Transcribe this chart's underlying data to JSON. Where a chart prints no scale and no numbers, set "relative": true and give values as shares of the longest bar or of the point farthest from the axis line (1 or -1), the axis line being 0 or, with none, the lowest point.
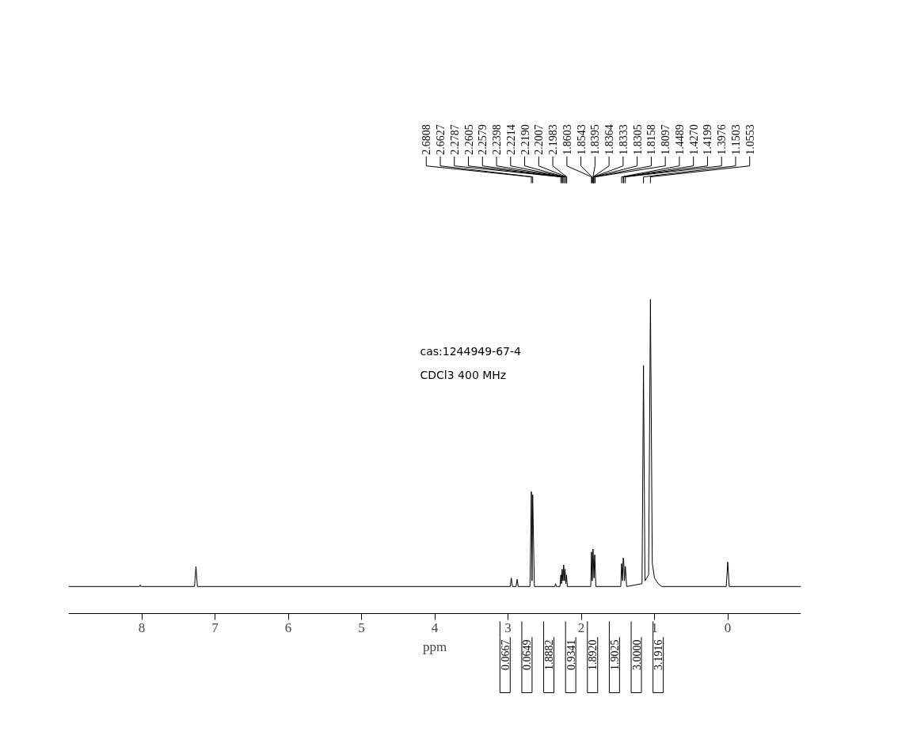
{
  "chart_data": {
    "type": "line",
    "relative": true,
    "xlabel": "ppm",
    "xlim": [
      9,
      -1
    ],
    "xticks": [
      0,
      1,
      2,
      3,
      4,
      5,
      6,
      7,
      8
    ],
    "grid": false,
    "tick_labels": "x",
    "marker": "none",
    "line_style": "solid",
    "x": [
      9.0,
      8.03,
      8.02,
      8.01,
      7.28,
      7.26,
      7.24,
      2.97,
      2.955,
      2.94,
      2.89,
      2.875,
      2.86,
      2.7,
      2.6808,
      2.672,
      2.6627,
      2.64,
      2.36,
      2.35,
      2.34,
      2.29,
      2.2787,
      2.27,
      2.2605,
      2.25,
      2.2398,
      2.23,
      2.2214,
      2.21,
      2.2007,
      2.19,
      1.87,
      1.8603,
      1.85,
      1.8395,
      1.826,
      1.8158,
      1.8,
      1.46,
      1.4489,
      1.435,
      1.427,
      1.4199,
      1.41,
      1.3976,
      1.38,
      1.17,
      1.1503,
      1.13,
      1.08,
      1.0553,
      1.03,
      1.0,
      0.95,
      0.9,
      0.02,
      0.0,
      -0.02,
      -1.0
    ],
    "series": [
      {
        "color": "#000000",
        "values": [
          0.086,
          0.086,
          0.091,
          0.086,
          0.086,
          0.15,
          0.086,
          0.086,
          0.113,
          0.086,
          0.086,
          0.109,
          0.086,
          0.086,
          0.388,
          0.104,
          0.378,
          0.086,
          0.086,
          0.095,
          0.086,
          0.086,
          0.123,
          0.095,
          0.141,
          0.104,
          0.155,
          0.104,
          0.141,
          0.095,
          0.123,
          0.086,
          0.086,
          0.196,
          0.104,
          0.205,
          0.113,
          0.187,
          0.086,
          0.086,
          0.159,
          0.104,
          0.177,
          0.168,
          0.104,
          0.15,
          0.086,
          0.095,
          0.79,
          0.104,
          0.123,
          1.0,
          0.159,
          0.113,
          0.095,
          0.086,
          0.086,
          0.164,
          0.086,
          0.086
        ]
      }
    ],
    "annotations": [
      "cas:1244949-67-4",
      "CDCl3   400 MHz",
      {
        "text": "2.6808",
        "x": 2.6808
      },
      {
        "text": "2.6627",
        "x": 2.6627
      },
      {
        "text": "2.2787",
        "x": 2.2787
      },
      {
        "text": "2.2605",
        "x": 2.2605
      },
      {
        "text": "2.2579",
        "x": 2.2579
      },
      {
        "text": "2.2398",
        "x": 2.2398
      },
      {
        "text": "2.2214",
        "x": 2.2214
      },
      {
        "text": "2.2190",
        "x": 2.219
      },
      {
        "text": "2.2007",
        "x": 2.2007
      },
      {
        "text": "2.1983",
        "x": 2.1983
      },
      {
        "text": "1.8603",
        "x": 1.8603
      },
      {
        "text": "1.8543",
        "x": 1.8543
      },
      {
        "text": "1.8395",
        "x": 1.8395
      },
      {
        "text": "1.8364",
        "x": 1.8364
      },
      {
        "text": "1.8333",
        "x": 1.8333
      },
      {
        "text": "1.8305",
        "x": 1.8305
      },
      {
        "text": "1.8158",
        "x": 1.8158
      },
      {
        "text": "1.8097",
        "x": 1.8097
      },
      {
        "text": "1.4489",
        "x": 1.4489
      },
      {
        "text": "1.4270",
        "x": 1.427
      },
      {
        "text": "1.4199",
        "x": 1.4199
      },
      {
        "text": "1.3976",
        "x": 1.3976
      },
      {
        "text": "1.1503",
        "x": 1.1503
      },
      {
        "text": "1.0553",
        "x": 1.0553
      },
      "0.0667",
      "0.0649",
      "1.8882",
      "0.9341",
      "1.8920",
      "1.9025",
      "3.0000",
      "3.1916"
    ]
  }
}
